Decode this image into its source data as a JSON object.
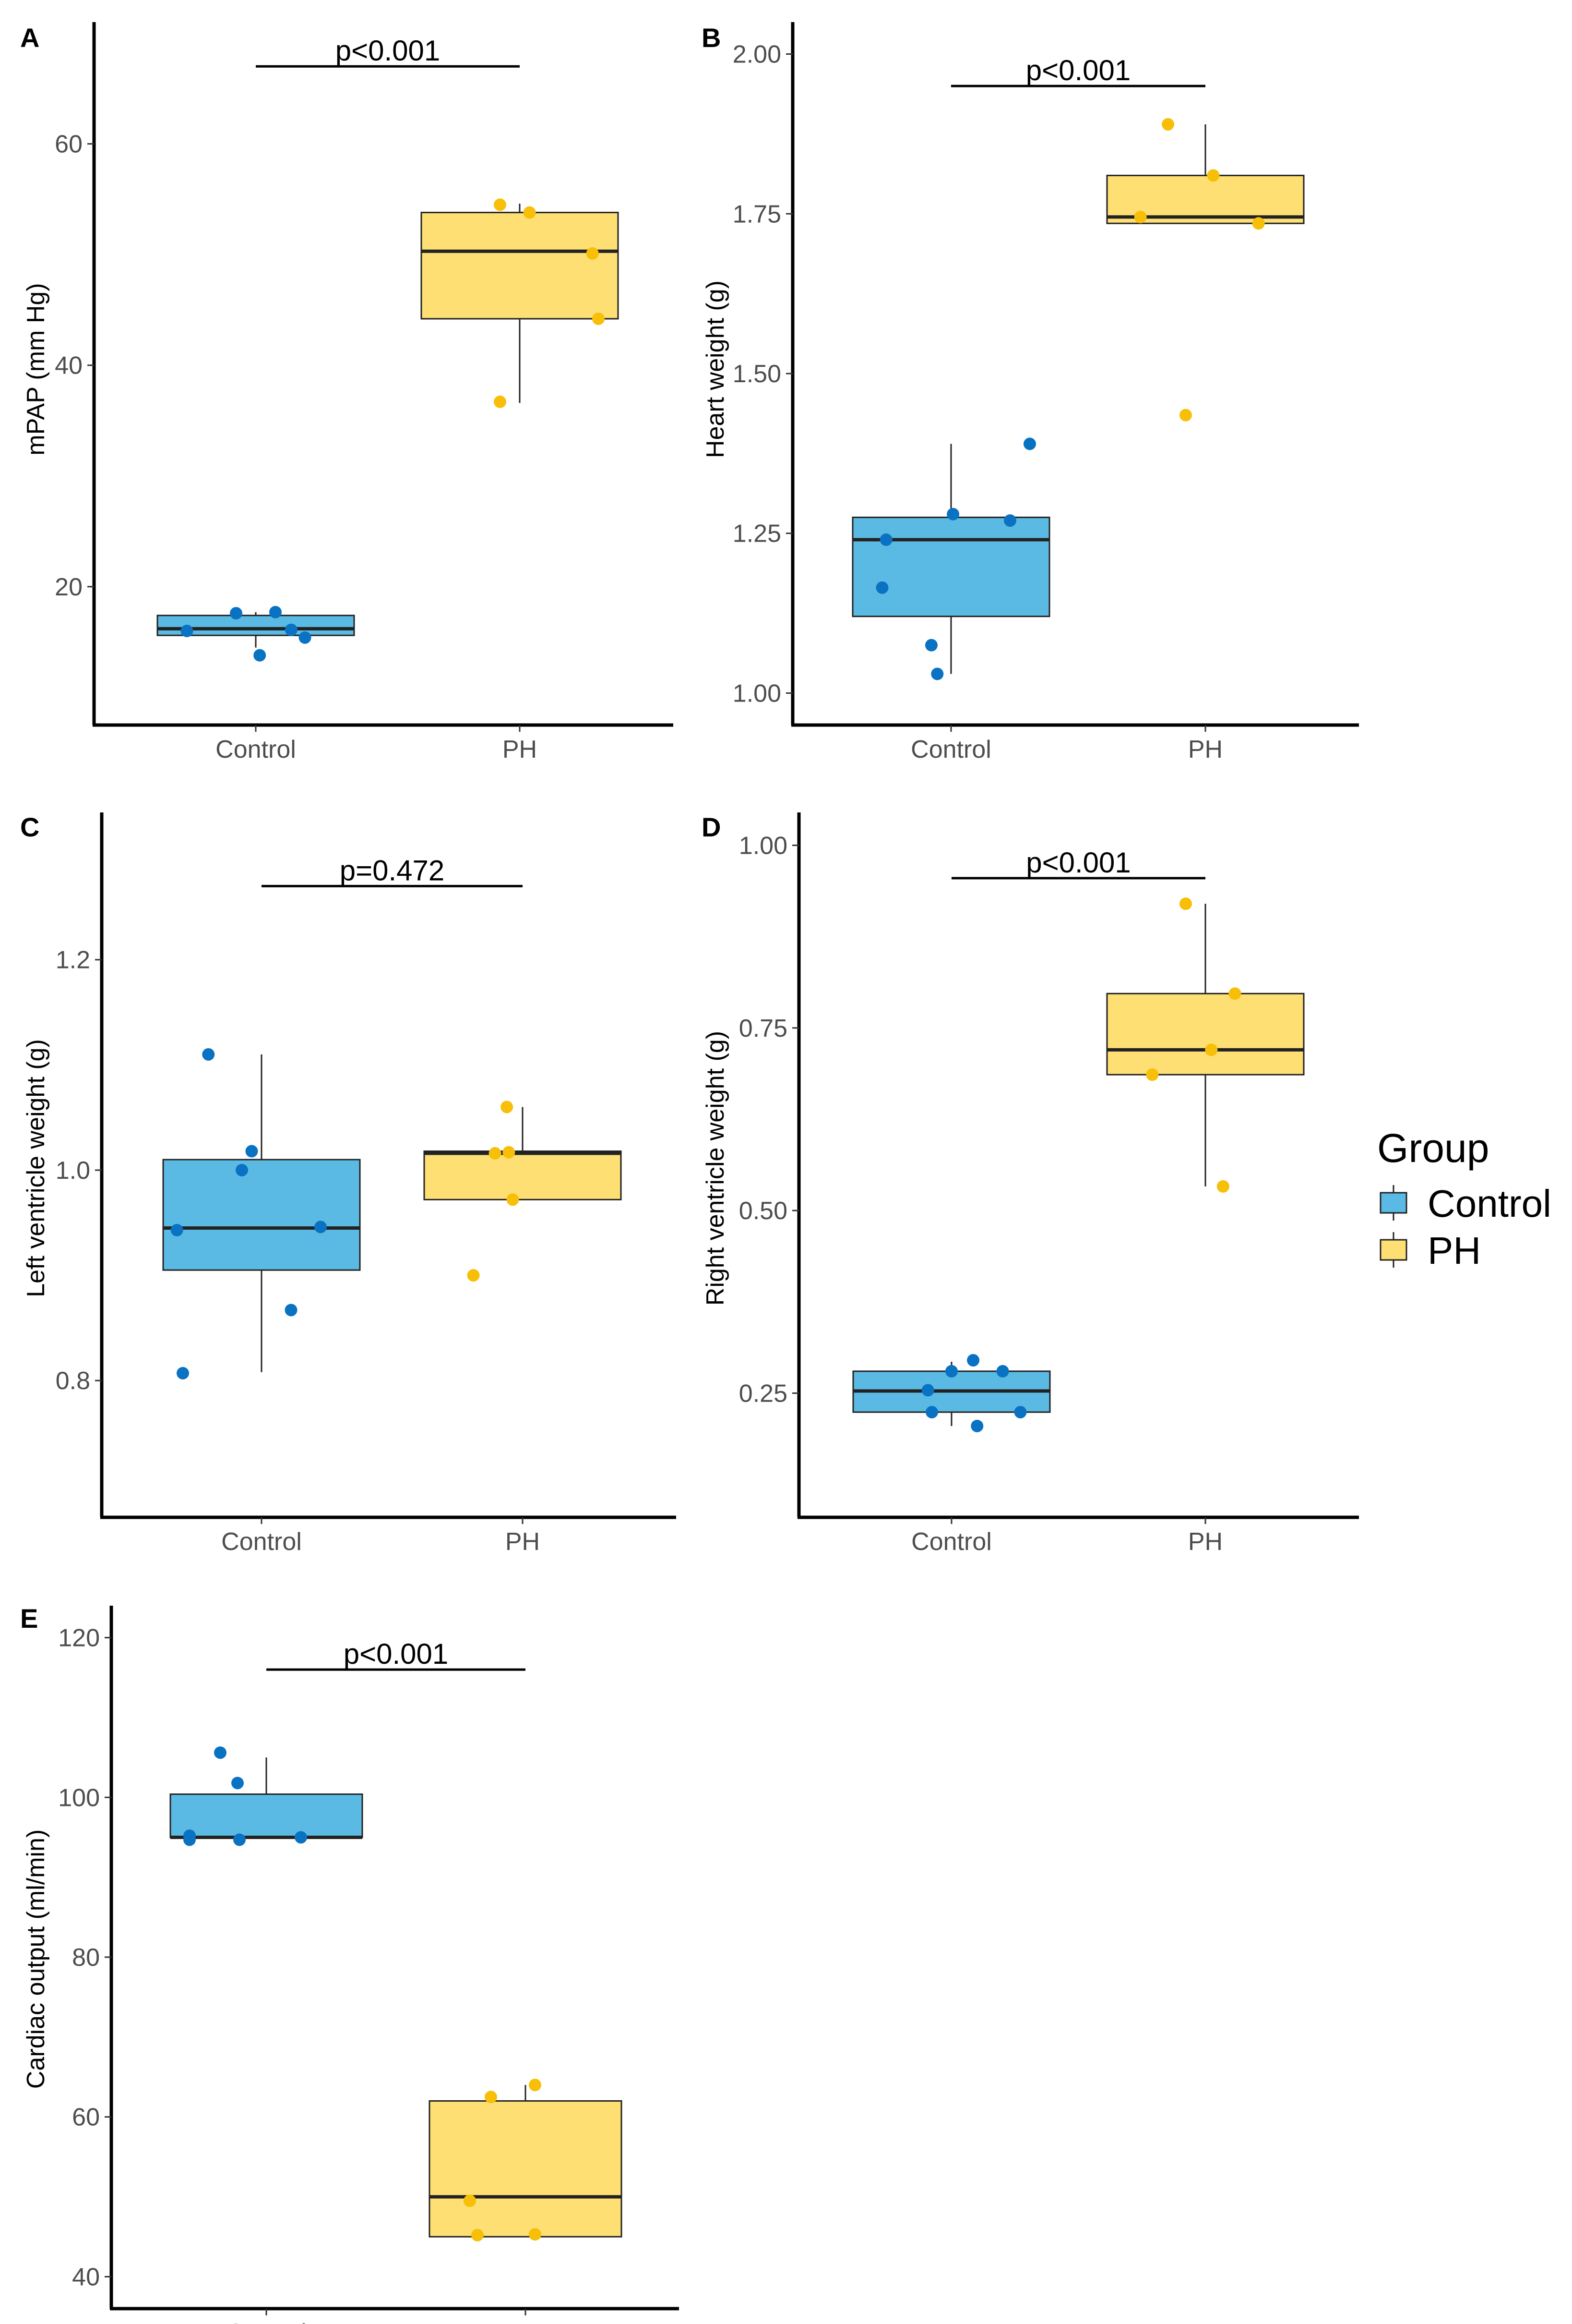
{
  "colors": {
    "control_fill": "#5bbae3",
    "ph_fill": "#fddf74",
    "control_point": "#0a72c3",
    "ph_point": "#f7bf08",
    "line": "#222222"
  },
  "legend": {
    "title": "Group",
    "items": [
      {
        "label": "Control",
        "color": "#5bbae3"
      },
      {
        "label": "PH",
        "color": "#fddf74"
      }
    ]
  },
  "chart_data": [
    {
      "panel": "A",
      "type": "box",
      "ylabel": "mPAP (mm Hg)",
      "categories": [
        "Control",
        "PH"
      ],
      "ylim": [
        7.5,
        71
      ],
      "yticks": [
        20,
        40,
        60
      ],
      "ytick_labels": [
        "20",
        "40",
        "60"
      ],
      "pvalue": "p<0.001",
      "bracket_y": 67,
      "groups": [
        {
          "name": "Control",
          "q1": 15.6,
          "median": 16.2,
          "q3": 17.4,
          "whisker_low": 14.5,
          "whisker_high": 17.7,
          "points": [
            [
              -0.35,
              16.0
            ],
            [
              -0.1,
              17.6
            ],
            [
              0.02,
              13.8
            ],
            [
              0.1,
              17.7
            ],
            [
              0.18,
              16.1
            ],
            [
              0.25,
              15.4
            ]
          ]
        },
        {
          "name": "PH",
          "q1": 44.2,
          "median": 50.3,
          "q3": 53.8,
          "whisker_low": 36.6,
          "whisker_high": 54.6,
          "points": [
            [
              -0.1,
              54.5
            ],
            [
              -0.1,
              36.7
            ],
            [
              0.05,
              53.8
            ],
            [
              0.37,
              50.1
            ],
            [
              0.4,
              44.2
            ]
          ]
        }
      ]
    },
    {
      "panel": "B",
      "type": "box",
      "ylabel": "Heart weight (g)",
      "categories": [
        "Control",
        "PH"
      ],
      "ylim": [
        0.95,
        2.05
      ],
      "yticks": [
        1.0,
        1.25,
        1.5,
        1.75,
        2.0
      ],
      "ytick_labels": [
        "1.00",
        "1.25",
        "1.50",
        "1.75",
        "2.00"
      ],
      "pvalue": "p<0.001",
      "bracket_y": 1.95,
      "groups": [
        {
          "name": "Control",
          "q1": 1.12,
          "median": 1.24,
          "q3": 1.275,
          "whisker_low": 1.03,
          "whisker_high": 1.39,
          "points": [
            [
              -0.33,
              1.24
            ],
            [
              -0.35,
              1.165
            ],
            [
              -0.1,
              1.075
            ],
            [
              -0.07,
              1.03
            ],
            [
              0.01,
              1.28
            ],
            [
              0.3,
              1.27
            ],
            [
              0.4,
              1.39
            ]
          ]
        },
        {
          "name": "PH",
          "q1": 1.735,
          "median": 1.745,
          "q3": 1.81,
          "whisker_low": 1.735,
          "whisker_high": 1.89,
          "points": [
            [
              -0.19,
              1.89
            ],
            [
              -0.33,
              1.745
            ],
            [
              0.04,
              1.81
            ],
            [
              -0.1,
              1.435
            ],
            [
              0.27,
              1.735
            ]
          ]
        }
      ]
    },
    {
      "panel": "C",
      "type": "box",
      "ylabel": "Left ventricle weight (g)",
      "categories": [
        "Control",
        "PH"
      ],
      "ylim": [
        0.67,
        1.34
      ],
      "yticks": [
        0.8,
        1.0,
        1.2
      ],
      "ytick_labels": [
        "0.8",
        "1.0",
        "1.2"
      ],
      "pvalue": "p=0.472",
      "bracket_y": 1.27,
      "groups": [
        {
          "name": "Control",
          "q1": 0.905,
          "median": 0.945,
          "q3": 1.01,
          "whisker_low": 0.808,
          "whisker_high": 1.11,
          "points": [
            [
              -0.43,
              0.943
            ],
            [
              -0.4,
              0.807
            ],
            [
              -0.27,
              1.11
            ],
            [
              -0.1,
              1.0
            ],
            [
              -0.05,
              1.018
            ],
            [
              0.15,
              0.867
            ],
            [
              0.3,
              0.946
            ]
          ]
        },
        {
          "name": "PH",
          "q1": 0.972,
          "median": 1.016,
          "q3": 1.018,
          "whisker_low": 0.972,
          "whisker_high": 1.06,
          "points": [
            [
              -0.25,
              0.9
            ],
            [
              -0.14,
              1.016
            ],
            [
              -0.08,
              1.06
            ],
            [
              -0.07,
              1.017
            ],
            [
              -0.05,
              0.972
            ]
          ]
        }
      ]
    },
    {
      "panel": "D",
      "type": "box",
      "ylabel": "Right ventricle weight (g)",
      "categories": [
        "Control",
        "PH"
      ],
      "ylim": [
        0.08,
        1.045
      ],
      "yticks": [
        0.25,
        0.5,
        0.75,
        1.0
      ],
      "ytick_labels": [
        "0.25",
        "0.50",
        "0.75",
        "1.00"
      ],
      "pvalue": "p<0.001",
      "bracket_y": 0.955,
      "groups": [
        {
          "name": "Control",
          "q1": 0.224,
          "median": 0.253,
          "q3": 0.28,
          "whisker_low": 0.205,
          "whisker_high": 0.293,
          "points": [
            [
              -0.12,
              0.254
            ],
            [
              -0.1,
              0.224
            ],
            [
              0.0,
              0.28
            ],
            [
              0.11,
              0.295
            ],
            [
              0.13,
              0.205
            ],
            [
              0.26,
              0.28
            ],
            [
              0.35,
              0.224
            ]
          ]
        },
        {
          "name": "PH",
          "q1": 0.686,
          "median": 0.72,
          "q3": 0.797,
          "whisker_low": 0.533,
          "whisker_high": 0.92,
          "points": [
            [
              -0.1,
              0.92
            ],
            [
              -0.27,
              0.686
            ],
            [
              0.03,
              0.72
            ],
            [
              0.15,
              0.797
            ],
            [
              0.09,
              0.533
            ]
          ]
        }
      ]
    },
    {
      "panel": "E",
      "type": "box",
      "ylabel": "Cardiac output (ml/min)",
      "categories": [
        "Control",
        "PH"
      ],
      "ylim": [
        36,
        124
      ],
      "yticks": [
        40,
        60,
        80,
        100,
        120
      ],
      "ytick_labels": [
        "40",
        "60",
        "80",
        "100",
        "120"
      ],
      "pvalue": "p<0.001",
      "bracket_y": 116,
      "groups": [
        {
          "name": "Control",
          "q1": 95,
          "median": 95,
          "q3": 100.4,
          "whisker_low": 95,
          "whisker_high": 105,
          "points": [
            [
              -0.4,
              95.2
            ],
            [
              -0.4,
              94.7
            ],
            [
              -0.24,
              105.6
            ],
            [
              -0.15,
              101.8
            ],
            [
              -0.14,
              94.7
            ],
            [
              0.18,
              95.0
            ]
          ]
        },
        {
          "name": "PH",
          "q1": 45,
          "median": 50,
          "q3": 62,
          "whisker_low": 45,
          "whisker_high": 64,
          "points": [
            [
              -0.18,
              62.5
            ],
            [
              -0.29,
              49.5
            ],
            [
              -0.25,
              45.2
            ],
            [
              0.05,
              64.0
            ],
            [
              0.05,
              45.3
            ]
          ]
        }
      ]
    }
  ]
}
